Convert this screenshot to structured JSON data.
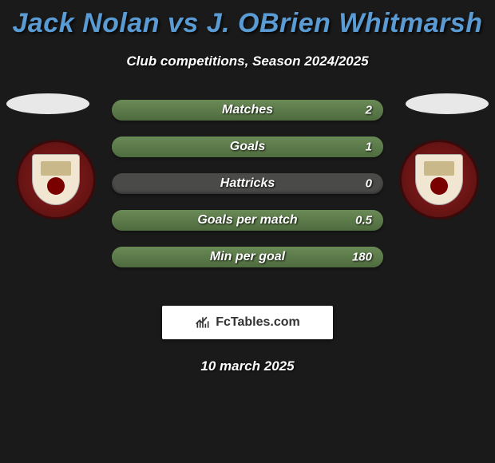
{
  "title": "Jack Nolan vs J. OBrien Whitmarsh",
  "subtitle": "Club competitions, Season 2024/2025",
  "date": "10 march 2025",
  "watermark": "FcTables.com",
  "colors": {
    "background": "#1a1a1a",
    "title": "#5a9bd4",
    "text": "#ffffff",
    "bar_fill": "#6a8a56",
    "bar_empty": "#3a3a3a",
    "badge_bg": "#8b1a1a"
  },
  "bar_style": {
    "height": 26,
    "gap": 20,
    "border_radius": 13,
    "label_fontsize": 16,
    "value_fontsize": 15
  },
  "stats": [
    {
      "label": "Matches",
      "left_value": "",
      "right_value": "2",
      "left_pct": 0,
      "right_pct": 100
    },
    {
      "label": "Goals",
      "left_value": "",
      "right_value": "1",
      "left_pct": 0,
      "right_pct": 100
    },
    {
      "label": "Hattricks",
      "left_value": "",
      "right_value": "0",
      "left_pct": 0,
      "right_pct": 0
    },
    {
      "label": "Goals per match",
      "left_value": "",
      "right_value": "0.5",
      "left_pct": 0,
      "right_pct": 100
    },
    {
      "label": "Min per goal",
      "left_value": "",
      "right_value": "180",
      "left_pct": 0,
      "right_pct": 100
    }
  ]
}
